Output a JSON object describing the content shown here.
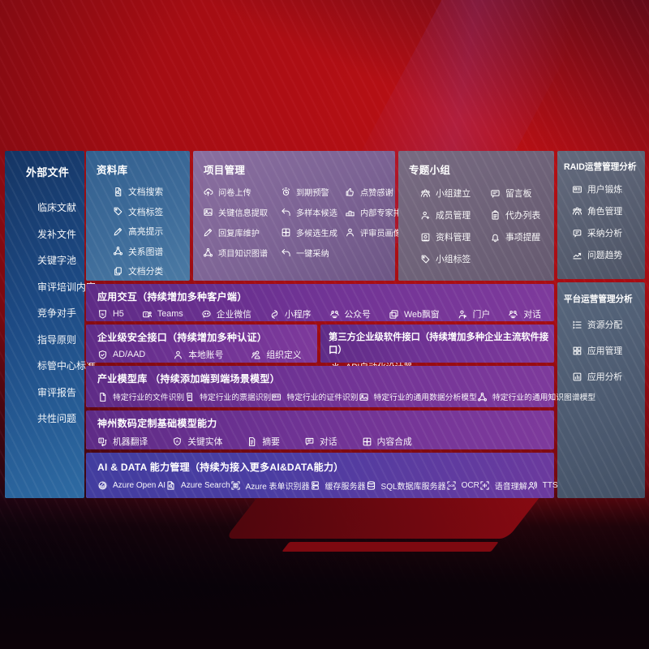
{
  "colors": {
    "background_red": "#a50d13",
    "sidebar_blue": "#1d4a84",
    "repo_blue": "#3e6c9a",
    "project_mauve": "#7c6394",
    "group_gray": "#6e6278",
    "raid_gray": "#565d6f",
    "platform_gray": "#4c5a70",
    "row_purple": "#6f3394",
    "aidata_indigo": "#4b3da2",
    "text": "#ffffff"
  },
  "sidebar": {
    "title": "外部文件",
    "items": [
      {
        "label": "临床文献"
      },
      {
        "label": "发补文件"
      },
      {
        "label": "关键字池"
      },
      {
        "label": "审评培训内容"
      },
      {
        "label": "竞争对手"
      },
      {
        "label": "指导原则"
      },
      {
        "label": "标管中心标准"
      },
      {
        "label": "审评报告"
      },
      {
        "label": "共性问题"
      }
    ]
  },
  "repo": {
    "title": "资料库",
    "items": [
      {
        "label": "文档搜索",
        "icon": "doc-search"
      },
      {
        "label": "文档标签",
        "icon": "doc-tag"
      },
      {
        "label": "高亮提示",
        "icon": "highlight"
      },
      {
        "label": "关系图谱",
        "icon": "relation-graph"
      },
      {
        "label": "文档分类",
        "icon": "doc-classify"
      }
    ]
  },
  "project": {
    "title": "项目管理",
    "items": [
      {
        "label": "问卷上传",
        "icon": "survey-upload"
      },
      {
        "label": "到期预警",
        "icon": "due-warning"
      },
      {
        "label": "点赞感谢",
        "icon": "thumbs-up"
      },
      {
        "label": "关键信息提取",
        "icon": "key-info-extract"
      },
      {
        "label": "多样本候选",
        "icon": "multi-sample"
      },
      {
        "label": "内部专家排名",
        "icon": "expert-ranking"
      },
      {
        "label": "回复库维护",
        "icon": "reply-maintain"
      },
      {
        "label": "多候选生成",
        "icon": "multi-candidate"
      },
      {
        "label": "评审员画像",
        "icon": "reviewer-profile"
      },
      {
        "label": "项目知识图谱",
        "icon": "knowledge-graph"
      },
      {
        "label": "一键采纳",
        "icon": "one-click-adopt"
      }
    ]
  },
  "group": {
    "title": "专题小组",
    "items": [
      {
        "label": "小组建立",
        "icon": "group-create"
      },
      {
        "label": "留言板",
        "icon": "message-board"
      },
      {
        "label": "成员管理",
        "icon": "member-manage"
      },
      {
        "label": "代办列表",
        "icon": "todo-list"
      },
      {
        "label": "资料管理",
        "icon": "material-manage"
      },
      {
        "label": "事项提醒",
        "icon": "reminder-bell"
      },
      {
        "label": "小组标签",
        "icon": "group-tag"
      }
    ]
  },
  "raid": {
    "title": "RAID运营管理分析",
    "items": [
      {
        "label": "用户锻炼",
        "icon": "user-card"
      },
      {
        "label": "角色管理",
        "icon": "role-manage"
      },
      {
        "label": "采纳分析",
        "icon": "adoption-analysis"
      },
      {
        "label": "问题趋势",
        "icon": "issue-trend"
      }
    ]
  },
  "platform": {
    "title": "平台运营管理分析",
    "items": [
      {
        "label": "资源分配",
        "icon": "resource-alloc"
      },
      {
        "label": "应用管理",
        "icon": "app-manage"
      },
      {
        "label": "应用分析",
        "icon": "app-analysis"
      }
    ]
  },
  "interact": {
    "title": "应用交互（持续增加多种客户端）",
    "items": [
      {
        "label": "H5",
        "icon": "h5"
      },
      {
        "label": "Teams",
        "icon": "teams"
      },
      {
        "label": "企业微信",
        "icon": "wechat-work"
      },
      {
        "label": "小程序",
        "icon": "mini-program"
      },
      {
        "label": "公众号",
        "icon": "official-account"
      },
      {
        "label": "Web飘窗",
        "icon": "web-popup"
      },
      {
        "label": "门户",
        "icon": "portal"
      },
      {
        "label": "对话",
        "icon": "dialog"
      }
    ]
  },
  "security": {
    "title": "企业级安全接口（持续增加多种认证）",
    "items": [
      {
        "label": "AD/AAD",
        "icon": "ad-aad-shield"
      },
      {
        "label": "本地账号",
        "icon": "local-account"
      },
      {
        "label": "组织定义",
        "icon": "org-define"
      }
    ]
  },
  "thirdparty": {
    "title": "第三方企业级软件接口（持续增加多种企业主流软件接口）",
    "items": [
      {
        "label": "API自动化设计器",
        "icon": "api-designer-gear"
      }
    ]
  },
  "industry": {
    "title": "产业模型库 （持续添加端到端场景模型）",
    "items": [
      {
        "label": "特定行业的文件识别",
        "icon": "file-recognize"
      },
      {
        "label": "特定行业的票据识别",
        "icon": "receipt-recognize"
      },
      {
        "label": "特定行业的证件识别",
        "icon": "id-recognize"
      },
      {
        "label": "特定行业的通用数据分析模型",
        "icon": "data-model"
      },
      {
        "label": "特定行业的通用知识图谱模型",
        "icon": "knowledge-model"
      }
    ]
  },
  "digital": {
    "title": "神州数码定制基础模型能力",
    "items": [
      {
        "label": "机器翻译",
        "icon": "machine-translate"
      },
      {
        "label": "关键实体",
        "icon": "key-entity"
      },
      {
        "label": "摘要",
        "icon": "summary-doc"
      },
      {
        "label": "对话",
        "icon": "dialog-chat"
      },
      {
        "label": "内容合成",
        "icon": "content-compose"
      }
    ]
  },
  "aidata": {
    "title": "AI & DATA 能力管理（持续为接入更多AI&DATA能力）",
    "items": [
      {
        "label": "Azure Open AI",
        "icon": "azure-openai"
      },
      {
        "label": "Azure Search",
        "icon": "azure-search"
      },
      {
        "label": "Azure 表单识别器",
        "icon": "azure-form"
      },
      {
        "label": "缓存服务器",
        "icon": "cache-server"
      },
      {
        "label": "SQL数据库服务器",
        "icon": "sql-database"
      },
      {
        "label": "OCR",
        "icon": "ocr"
      },
      {
        "label": "语音理解",
        "icon": "speech-understand"
      },
      {
        "label": "TTS",
        "icon": "tts"
      }
    ]
  }
}
